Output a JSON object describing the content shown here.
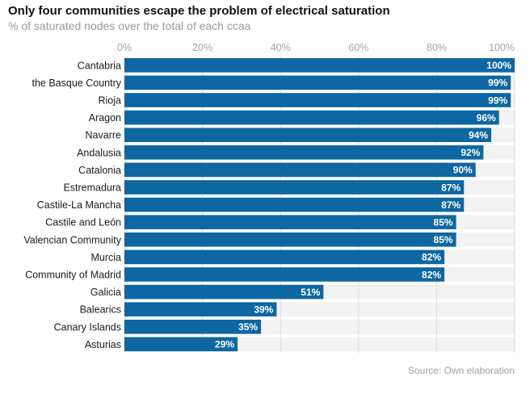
{
  "chart_data": {
    "type": "bar",
    "orientation": "horizontal",
    "title": "Only four communities escape the problem of electrical saturation",
    "subtitle": "% of saturated nodes over the total of each ccaa",
    "source": "Source: Own elaboration",
    "categories": [
      "Cantabria",
      "the Basque Country",
      "Rioja",
      "Aragon",
      "Navarre",
      "Andalusia",
      "Catalonia",
      "Estremadura",
      "Castile-La Mancha",
      "Castile and León",
      "Valencian Community",
      "Murcia",
      "Community of Madrid",
      "Galicia",
      "Balearics",
      "Canary Islands",
      "Asturias"
    ],
    "values": [
      100,
      99,
      99,
      96,
      94,
      92,
      90,
      87,
      87,
      85,
      85,
      82,
      82,
      51,
      39,
      35,
      29
    ],
    "labels": [
      "100%",
      "99%",
      "99%",
      "96%",
      "94%",
      "92%",
      "90%",
      "87%",
      "87%",
      "85%",
      "85%",
      "82%",
      "82%",
      "51%",
      "39%",
      "35%",
      "29%"
    ],
    "xlim": [
      0,
      100
    ],
    "xticks": [
      0,
      20,
      40,
      60,
      80,
      100
    ],
    "xtick_labels": [
      "0%",
      "20%",
      "40%",
      "60%",
      "80%",
      "100%"
    ],
    "grid": true,
    "bar_color": "#0e67a0",
    "track_color": "#f2f2f2",
    "grid_color": "#dedede"
  }
}
